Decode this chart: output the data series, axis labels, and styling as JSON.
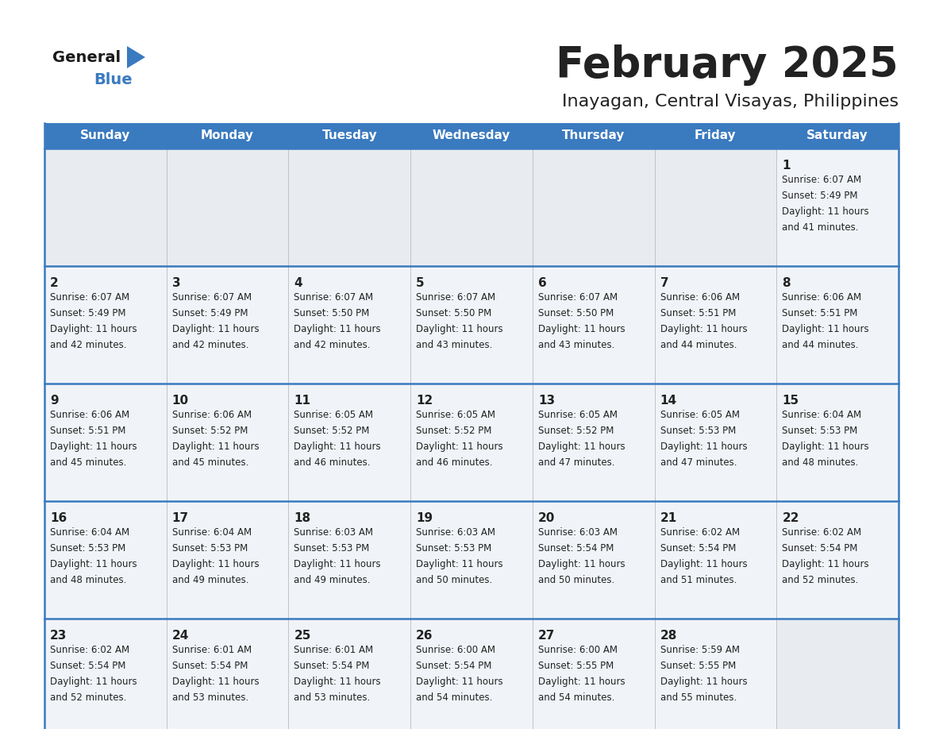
{
  "title": "February 2025",
  "subtitle": "Inayagan, Central Visayas, Philippines",
  "header_color": "#3a7abf",
  "header_text_color": "#ffffff",
  "border_color": "#3a7abf",
  "cell_bg_filled": "#f0f4f8",
  "cell_bg_empty": "#e8ecf0",
  "text_color": "#222222",
  "days_of_week": [
    "Sunday",
    "Monday",
    "Tuesday",
    "Wednesday",
    "Thursday",
    "Friday",
    "Saturday"
  ],
  "calendar_data": [
    [
      null,
      null,
      null,
      null,
      null,
      null,
      {
        "day": "1",
        "sunrise": "6:07 AM",
        "sunset": "5:49 PM",
        "daylight_line1": "Daylight: 11 hours",
        "daylight_line2": "and 41 minutes."
      }
    ],
    [
      {
        "day": "2",
        "sunrise": "6:07 AM",
        "sunset": "5:49 PM",
        "daylight_line1": "Daylight: 11 hours",
        "daylight_line2": "and 42 minutes."
      },
      {
        "day": "3",
        "sunrise": "6:07 AM",
        "sunset": "5:49 PM",
        "daylight_line1": "Daylight: 11 hours",
        "daylight_line2": "and 42 minutes."
      },
      {
        "day": "4",
        "sunrise": "6:07 AM",
        "sunset": "5:50 PM",
        "daylight_line1": "Daylight: 11 hours",
        "daylight_line2": "and 42 minutes."
      },
      {
        "day": "5",
        "sunrise": "6:07 AM",
        "sunset": "5:50 PM",
        "daylight_line1": "Daylight: 11 hours",
        "daylight_line2": "and 43 minutes."
      },
      {
        "day": "6",
        "sunrise": "6:07 AM",
        "sunset": "5:50 PM",
        "daylight_line1": "Daylight: 11 hours",
        "daylight_line2": "and 43 minutes."
      },
      {
        "day": "7",
        "sunrise": "6:06 AM",
        "sunset": "5:51 PM",
        "daylight_line1": "Daylight: 11 hours",
        "daylight_line2": "and 44 minutes."
      },
      {
        "day": "8",
        "sunrise": "6:06 AM",
        "sunset": "5:51 PM",
        "daylight_line1": "Daylight: 11 hours",
        "daylight_line2": "and 44 minutes."
      }
    ],
    [
      {
        "day": "9",
        "sunrise": "6:06 AM",
        "sunset": "5:51 PM",
        "daylight_line1": "Daylight: 11 hours",
        "daylight_line2": "and 45 minutes."
      },
      {
        "day": "10",
        "sunrise": "6:06 AM",
        "sunset": "5:52 PM",
        "daylight_line1": "Daylight: 11 hours",
        "daylight_line2": "and 45 minutes."
      },
      {
        "day": "11",
        "sunrise": "6:05 AM",
        "sunset": "5:52 PM",
        "daylight_line1": "Daylight: 11 hours",
        "daylight_line2": "and 46 minutes."
      },
      {
        "day": "12",
        "sunrise": "6:05 AM",
        "sunset": "5:52 PM",
        "daylight_line1": "Daylight: 11 hours",
        "daylight_line2": "and 46 minutes."
      },
      {
        "day": "13",
        "sunrise": "6:05 AM",
        "sunset": "5:52 PM",
        "daylight_line1": "Daylight: 11 hours",
        "daylight_line2": "and 47 minutes."
      },
      {
        "day": "14",
        "sunrise": "6:05 AM",
        "sunset": "5:53 PM",
        "daylight_line1": "Daylight: 11 hours",
        "daylight_line2": "and 47 minutes."
      },
      {
        "day": "15",
        "sunrise": "6:04 AM",
        "sunset": "5:53 PM",
        "daylight_line1": "Daylight: 11 hours",
        "daylight_line2": "and 48 minutes."
      }
    ],
    [
      {
        "day": "16",
        "sunrise": "6:04 AM",
        "sunset": "5:53 PM",
        "daylight_line1": "Daylight: 11 hours",
        "daylight_line2": "and 48 minutes."
      },
      {
        "day": "17",
        "sunrise": "6:04 AM",
        "sunset": "5:53 PM",
        "daylight_line1": "Daylight: 11 hours",
        "daylight_line2": "and 49 minutes."
      },
      {
        "day": "18",
        "sunrise": "6:03 AM",
        "sunset": "5:53 PM",
        "daylight_line1": "Daylight: 11 hours",
        "daylight_line2": "and 49 minutes."
      },
      {
        "day": "19",
        "sunrise": "6:03 AM",
        "sunset": "5:53 PM",
        "daylight_line1": "Daylight: 11 hours",
        "daylight_line2": "and 50 minutes."
      },
      {
        "day": "20",
        "sunrise": "6:03 AM",
        "sunset": "5:54 PM",
        "daylight_line1": "Daylight: 11 hours",
        "daylight_line2": "and 50 minutes."
      },
      {
        "day": "21",
        "sunrise": "6:02 AM",
        "sunset": "5:54 PM",
        "daylight_line1": "Daylight: 11 hours",
        "daylight_line2": "and 51 minutes."
      },
      {
        "day": "22",
        "sunrise": "6:02 AM",
        "sunset": "5:54 PM",
        "daylight_line1": "Daylight: 11 hours",
        "daylight_line2": "and 52 minutes."
      }
    ],
    [
      {
        "day": "23",
        "sunrise": "6:02 AM",
        "sunset": "5:54 PM",
        "daylight_line1": "Daylight: 11 hours",
        "daylight_line2": "and 52 minutes."
      },
      {
        "day": "24",
        "sunrise": "6:01 AM",
        "sunset": "5:54 PM",
        "daylight_line1": "Daylight: 11 hours",
        "daylight_line2": "and 53 minutes."
      },
      {
        "day": "25",
        "sunrise": "6:01 AM",
        "sunset": "5:54 PM",
        "daylight_line1": "Daylight: 11 hours",
        "daylight_line2": "and 53 minutes."
      },
      {
        "day": "26",
        "sunrise": "6:00 AM",
        "sunset": "5:54 PM",
        "daylight_line1": "Daylight: 11 hours",
        "daylight_line2": "and 54 minutes."
      },
      {
        "day": "27",
        "sunrise": "6:00 AM",
        "sunset": "5:55 PM",
        "daylight_line1": "Daylight: 11 hours",
        "daylight_line2": "and 54 minutes."
      },
      {
        "day": "28",
        "sunrise": "5:59 AM",
        "sunset": "5:55 PM",
        "daylight_line1": "Daylight: 11 hours",
        "daylight_line2": "and 55 minutes."
      },
      null
    ]
  ],
  "logo_general_color": "#1a1a1a",
  "logo_blue_color": "#3a7abf",
  "fig_width": 11.88,
  "fig_height": 9.18
}
